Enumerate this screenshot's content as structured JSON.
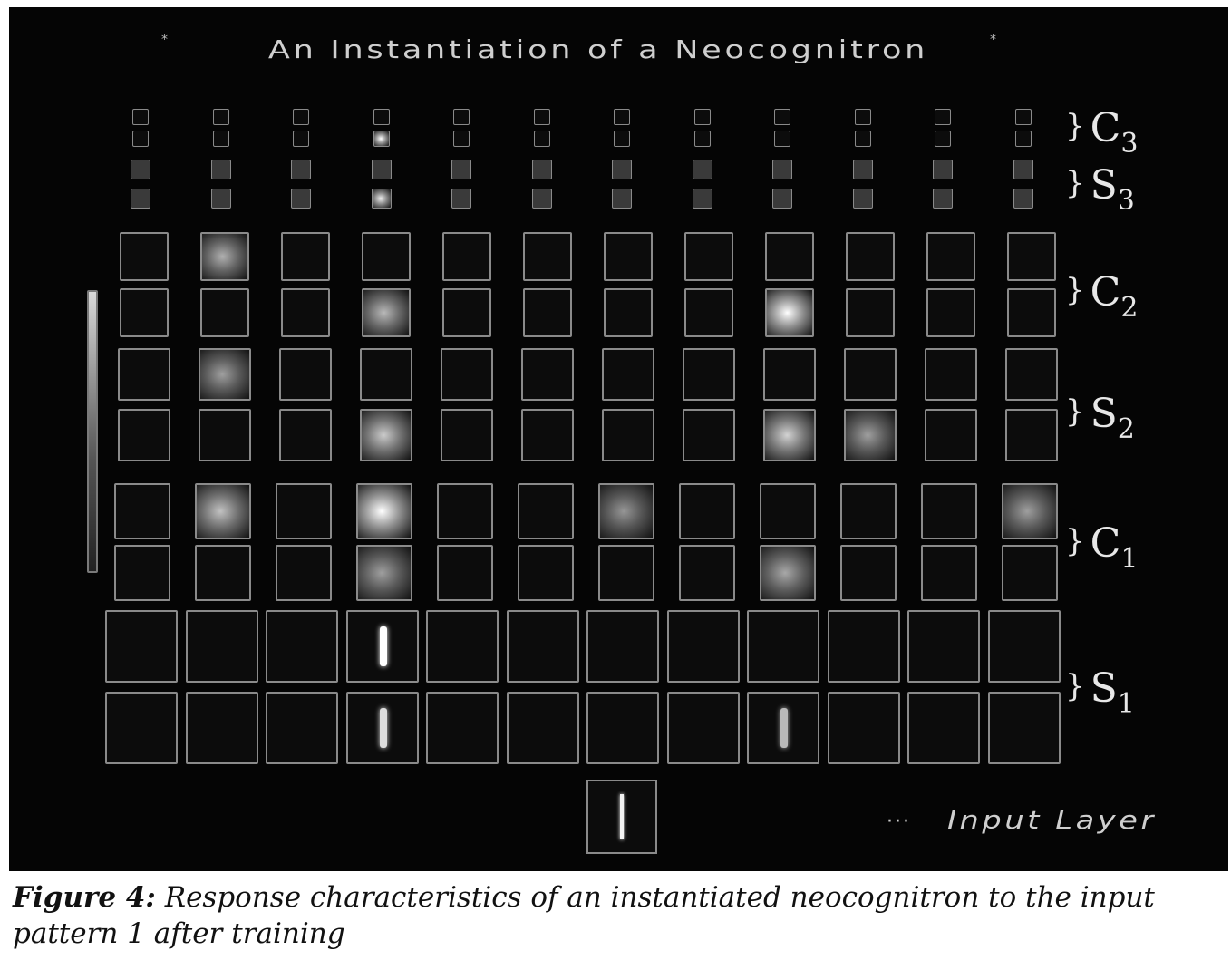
{
  "figure": {
    "title": "An Instantiation of a Neocognitron",
    "layer_labels": {
      "C3": {
        "letter": "C",
        "sub": "3"
      },
      "S3": {
        "letter": "S",
        "sub": "3"
      },
      "C2": {
        "letter": "C",
        "sub": "2"
      },
      "S2": {
        "letter": "S",
        "sub": "2"
      },
      "C1": {
        "letter": "C",
        "sub": "1"
      },
      "S1": {
        "letter": "S",
        "sub": "1"
      }
    },
    "input_layer_label": "Input Layer",
    "input_arrow": "···",
    "activity_colors": {
      "cell_border": "#8a8a8a",
      "panel_bg": "#050505",
      "active": "#ffffff"
    },
    "columns": 12,
    "active_units": [
      {
        "layer": "C3",
        "row": 1,
        "col": 3,
        "level": 1.0
      },
      {
        "layer": "S3",
        "row": 1,
        "col": 3,
        "level": 0.9
      },
      {
        "layer": "C2",
        "row": 0,
        "col": 1,
        "level": 0.55
      },
      {
        "layer": "C2",
        "row": 1,
        "col": 3,
        "level": 0.6
      },
      {
        "layer": "C2",
        "row": 1,
        "col": 8,
        "level": 1.0
      },
      {
        "layer": "S2",
        "row": 0,
        "col": 1,
        "level": 0.45
      },
      {
        "layer": "S2",
        "row": 1,
        "col": 3,
        "level": 0.7
      },
      {
        "layer": "S2",
        "row": 1,
        "col": 8,
        "level": 0.75
      },
      {
        "layer": "S2",
        "row": 1,
        "col": 9,
        "level": 0.45
      },
      {
        "layer": "C1",
        "row": 0,
        "col": 1,
        "level": 0.65
      },
      {
        "layer": "C1",
        "row": 0,
        "col": 3,
        "level": 1.0
      },
      {
        "layer": "C1",
        "row": 0,
        "col": 6,
        "level": 0.4
      },
      {
        "layer": "C1",
        "row": 0,
        "col": 11,
        "level": 0.45
      },
      {
        "layer": "C1",
        "row": 1,
        "col": 3,
        "level": 0.45
      },
      {
        "layer": "C1",
        "row": 1,
        "col": 8,
        "level": 0.5
      },
      {
        "layer": "S1",
        "row": 0,
        "col": 3,
        "level": 1.0
      },
      {
        "layer": "S1",
        "row": 1,
        "col": 3,
        "level": 0.8
      },
      {
        "layer": "S1",
        "row": 1,
        "col": 8,
        "level": 0.6
      }
    ]
  },
  "caption": {
    "label": "Figure 4:",
    "text": " Response characteristics of an instantiated neocognitron to the input pattern 1 after training"
  }
}
